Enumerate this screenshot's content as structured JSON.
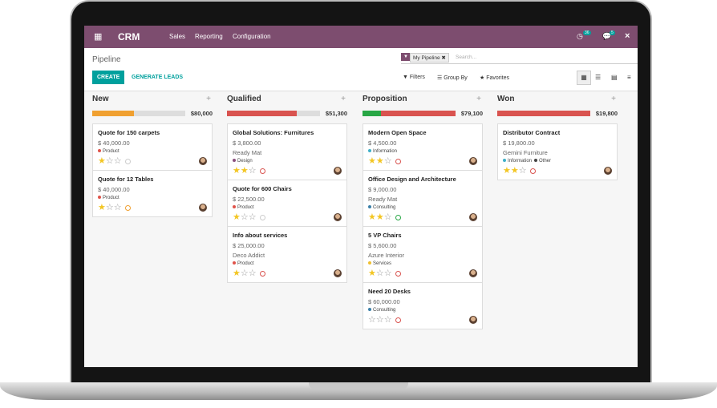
{
  "app": {
    "name": "CRM",
    "menu": [
      "Sales",
      "Reporting",
      "Configuration"
    ],
    "badges": [
      "36",
      "5"
    ],
    "close": "×"
  },
  "control": {
    "breadcrumb": "Pipeline",
    "facet": "My Pipeline",
    "search_placeholder": "Search...",
    "buttons": [
      "CREATE",
      "GENERATE LEADS"
    ],
    "filters": [
      "Filters",
      "Group By",
      "Favorites"
    ]
  },
  "columns": [
    {
      "name": "New",
      "add": "+",
      "total": "$80,000",
      "cards": [
        {
          "title": "Quote for 150 carpets",
          "amount": "$ 40,000.00",
          "tags": [
            {
              "name": "Product",
              "color": "#e0534a"
            }
          ],
          "priority": 1,
          "activity_color": "#cccccc"
        },
        {
          "title": "Quote for 12 Tables",
          "amount": "$ 40,000.00",
          "tags": [
            {
              "name": "Product",
              "color": "#e0534a"
            }
          ],
          "priority": 1,
          "activity_color": "#f0a030"
        }
      ]
    },
    {
      "name": "Qualified",
      "add": "+",
      "total": "$51,300",
      "cards": [
        {
          "title": "Global Solutions: Furnitures",
          "amount": "$ 3,800.00",
          "company": "Ready Mat",
          "tags": [
            {
              "name": "Design",
              "color": "#8a4f7d"
            }
          ],
          "priority": 2,
          "activity_color": "#d9534f"
        },
        {
          "title": "Quote for 600 Chairs",
          "amount": "$ 22,500.00",
          "tags": [
            {
              "name": "Product",
              "color": "#e0534a"
            }
          ],
          "priority": 1,
          "activity_color": "#cccccc"
        },
        {
          "title": "Info about services",
          "amount": "$ 25,000.00",
          "company": "Deco Addict",
          "tags": [
            {
              "name": "Product",
              "color": "#e0534a"
            }
          ],
          "priority": 1,
          "activity_color": "#d9534f"
        }
      ]
    },
    {
      "name": "Proposition",
      "add": "+",
      "total": "$79,100",
      "cards": [
        {
          "title": "Modern Open Space",
          "amount": "$ 4,500.00",
          "tags": [
            {
              "name": "Information",
              "color": "#3fb0c8"
            }
          ],
          "priority": 2,
          "activity_color": "#d9534f"
        },
        {
          "title": "Office Design and Architecture",
          "amount": "$ 9,000.00",
          "company": "Ready Mat",
          "tags": [
            {
              "name": "Consulting",
              "color": "#3a7fa8"
            }
          ],
          "priority": 2,
          "activity_color": "#28a745"
        },
        {
          "title": "5 VP Chairs",
          "amount": "$ 5,600.00",
          "company": "Azure Interior",
          "tags": [
            {
              "name": "Services",
              "color": "#f0c030"
            }
          ],
          "priority": 1,
          "activity_color": "#d9534f"
        },
        {
          "title": "Need 20 Desks",
          "amount": "$ 60,000.00",
          "tags": [
            {
              "name": "Consulting",
              "color": "#3a7fa8"
            }
          ],
          "priority": 0,
          "activity_color": "#d9534f"
        }
      ]
    },
    {
      "name": "Won",
      "add": "+",
      "total": "$19,800",
      "cards": [
        {
          "title": "Distributor Contract",
          "amount": "$ 19,800.00",
          "company": "Gemini Furniture",
          "tags": [
            {
              "name": "Information",
              "color": "#3fb0c8"
            },
            {
              "name": "Other",
              "color": "#444444"
            }
          ],
          "priority": 2,
          "activity_color": "#d9534f"
        }
      ]
    }
  ]
}
